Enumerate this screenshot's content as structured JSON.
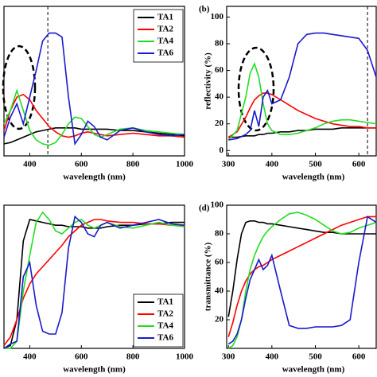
{
  "chart_data": [
    {
      "type": "line",
      "xlabel": "wavelength (nm)",
      "xlim": [
        300,
        1000
      ],
      "xticks": [
        400,
        600,
        800,
        1000
      ],
      "ylim": [
        -4,
        108
      ],
      "vline": 470,
      "legend": "upper right",
      "x": [
        300,
        325,
        350,
        375,
        400,
        425,
        450,
        475,
        500,
        525,
        550,
        575,
        600,
        625,
        650,
        675,
        700,
        750,
        800,
        850,
        900,
        950,
        1000
      ],
      "series": [
        {
          "name": "TA1",
          "color": "#000000",
          "values": [
            5,
            6,
            8,
            10,
            12,
            14,
            15,
            16,
            17,
            17,
            17,
            17,
            16,
            16,
            16,
            16,
            16,
            15,
            15,
            14,
            13,
            12,
            11
          ]
        },
        {
          "name": "TA2",
          "color": "#ff0000",
          "values": [
            15,
            30,
            40,
            42,
            38,
            30,
            24,
            18,
            14,
            11,
            10,
            11,
            13,
            14,
            13,
            12,
            11,
            12,
            13,
            12,
            11,
            11,
            10
          ]
        },
        {
          "name": "TA4",
          "color": "#22dd22",
          "values": [
            20,
            30,
            45,
            30,
            15,
            8,
            5,
            4,
            6,
            12,
            20,
            25,
            24,
            18,
            12,
            10,
            12,
            16,
            17,
            15,
            14,
            13,
            12
          ]
        },
        {
          "name": "TA6",
          "color": "#1a1acc",
          "values": [
            10,
            25,
            35,
            20,
            40,
            60,
            82,
            88,
            88,
            85,
            40,
            5,
            12,
            22,
            18,
            10,
            8,
            15,
            17,
            14,
            12,
            11,
            12
          ]
        }
      ]
    },
    {
      "type": "line",
      "label": "(b)",
      "xlabel": "wavelength (nm)",
      "ylabel": "reflectivity (%)",
      "xlim": [
        296,
        640
      ],
      "xticks": [
        300,
        400,
        500,
        600
      ],
      "ylim": [
        -4,
        108
      ],
      "yticks": [
        0,
        20,
        40,
        60,
        80,
        100
      ],
      "vline": 620,
      "x": [
        300,
        320,
        340,
        350,
        360,
        370,
        380,
        390,
        400,
        420,
        440,
        460,
        480,
        500,
        520,
        540,
        560,
        580,
        600,
        620,
        640
      ],
      "series": [
        {
          "name": "TA1",
          "color": "#000000",
          "values": [
            10,
            10,
            11,
            11,
            11,
            12,
            12,
            13,
            13,
            14,
            14,
            15,
            15,
            16,
            16,
            16,
            17,
            17,
            17,
            17,
            17
          ]
        },
        {
          "name": "TA2",
          "color": "#ff0000",
          "values": [
            10,
            14,
            25,
            32,
            38,
            41,
            43,
            43,
            42,
            38,
            34,
            30,
            27,
            24,
            22,
            20,
            19,
            18,
            18,
            17,
            17
          ]
        },
        {
          "name": "TA4",
          "color": "#22dd22",
          "values": [
            8,
            15,
            40,
            58,
            65,
            55,
            35,
            20,
            15,
            12,
            12,
            13,
            15,
            17,
            20,
            22,
            23,
            23,
            22,
            21,
            20
          ]
        },
        {
          "name": "TA6",
          "color": "#1a1acc",
          "values": [
            8,
            9,
            12,
            15,
            30,
            18,
            40,
            45,
            35,
            38,
            55,
            80,
            87,
            88,
            88,
            87,
            86,
            85,
            84,
            75,
            55
          ]
        }
      ]
    },
    {
      "type": "line",
      "xlabel": "wavelength (nm)",
      "xlim": [
        300,
        1000
      ],
      "xticks": [
        400,
        600,
        800,
        1000
      ],
      "ylim": [
        0,
        100
      ],
      "legend": "lower right",
      "x": [
        300,
        325,
        350,
        375,
        400,
        425,
        450,
        475,
        500,
        525,
        550,
        575,
        600,
        625,
        650,
        675,
        700,
        750,
        800,
        850,
        900,
        950,
        1000
      ],
      "series": [
        {
          "name": "TA1",
          "color": "#000000",
          "values": [
            0,
            2,
            20,
            75,
            90,
            89,
            88,
            87,
            86,
            86,
            85,
            85,
            85,
            84,
            84,
            84,
            85,
            86,
            86,
            87,
            87,
            88,
            88
          ]
        },
        {
          "name": "TA2",
          "color": "#ff0000",
          "values": [
            2,
            8,
            20,
            35,
            45,
            52,
            57,
            62,
            67,
            72,
            78,
            82,
            86,
            88,
            90,
            90,
            89,
            88,
            88,
            87,
            87,
            86,
            86
          ]
        },
        {
          "name": "TA4",
          "color": "#22dd22",
          "values": [
            0,
            0,
            5,
            40,
            65,
            88,
            95,
            90,
            82,
            80,
            84,
            88,
            90,
            86,
            84,
            86,
            88,
            85,
            84,
            86,
            88,
            86,
            85
          ]
        },
        {
          "name": "TA6",
          "color": "#1a1acc",
          "values": [
            0,
            3,
            5,
            50,
            60,
            30,
            12,
            10,
            10,
            25,
            70,
            92,
            88,
            80,
            78,
            86,
            88,
            84,
            86,
            88,
            90,
            87,
            86
          ]
        }
      ]
    },
    {
      "type": "line",
      "label": "(d)",
      "xlabel": "wavelength (nm)",
      "ylabel": "transmittance (%)",
      "xlim": [
        296,
        640
      ],
      "xticks": [
        300,
        400,
        500,
        600
      ],
      "ylim": [
        0,
        100
      ],
      "yticks": [
        20,
        40,
        60,
        80,
        100
      ],
      "x": [
        300,
        310,
        320,
        330,
        340,
        350,
        360,
        370,
        380,
        390,
        400,
        420,
        440,
        460,
        480,
        500,
        520,
        540,
        560,
        580,
        600,
        620,
        640
      ],
      "series": [
        {
          "name": "TA1",
          "color": "#000000",
          "values": [
            22,
            40,
            62,
            80,
            88,
            89,
            89,
            88,
            88,
            87,
            87,
            86,
            85,
            84,
            83,
            82,
            81,
            81,
            80,
            80,
            80,
            80,
            80
          ]
        },
        {
          "name": "TA2",
          "color": "#ff0000",
          "values": [
            8,
            18,
            30,
            40,
            47,
            52,
            55,
            57,
            58,
            60,
            62,
            65,
            68,
            71,
            74,
            77,
            80,
            83,
            86,
            88,
            90,
            92,
            92
          ]
        },
        {
          "name": "TA4",
          "color": "#22dd22",
          "values": [
            0,
            2,
            8,
            20,
            40,
            55,
            65,
            72,
            78,
            82,
            85,
            90,
            94,
            95,
            93,
            90,
            86,
            82,
            80,
            81,
            84,
            86,
            88
          ]
        },
        {
          "name": "TA6",
          "color": "#1a1acc",
          "values": [
            3,
            5,
            10,
            20,
            35,
            48,
            55,
            62,
            55,
            58,
            65,
            40,
            16,
            14,
            14,
            15,
            15,
            15,
            16,
            20,
            60,
            92,
            88
          ]
        }
      ]
    }
  ]
}
